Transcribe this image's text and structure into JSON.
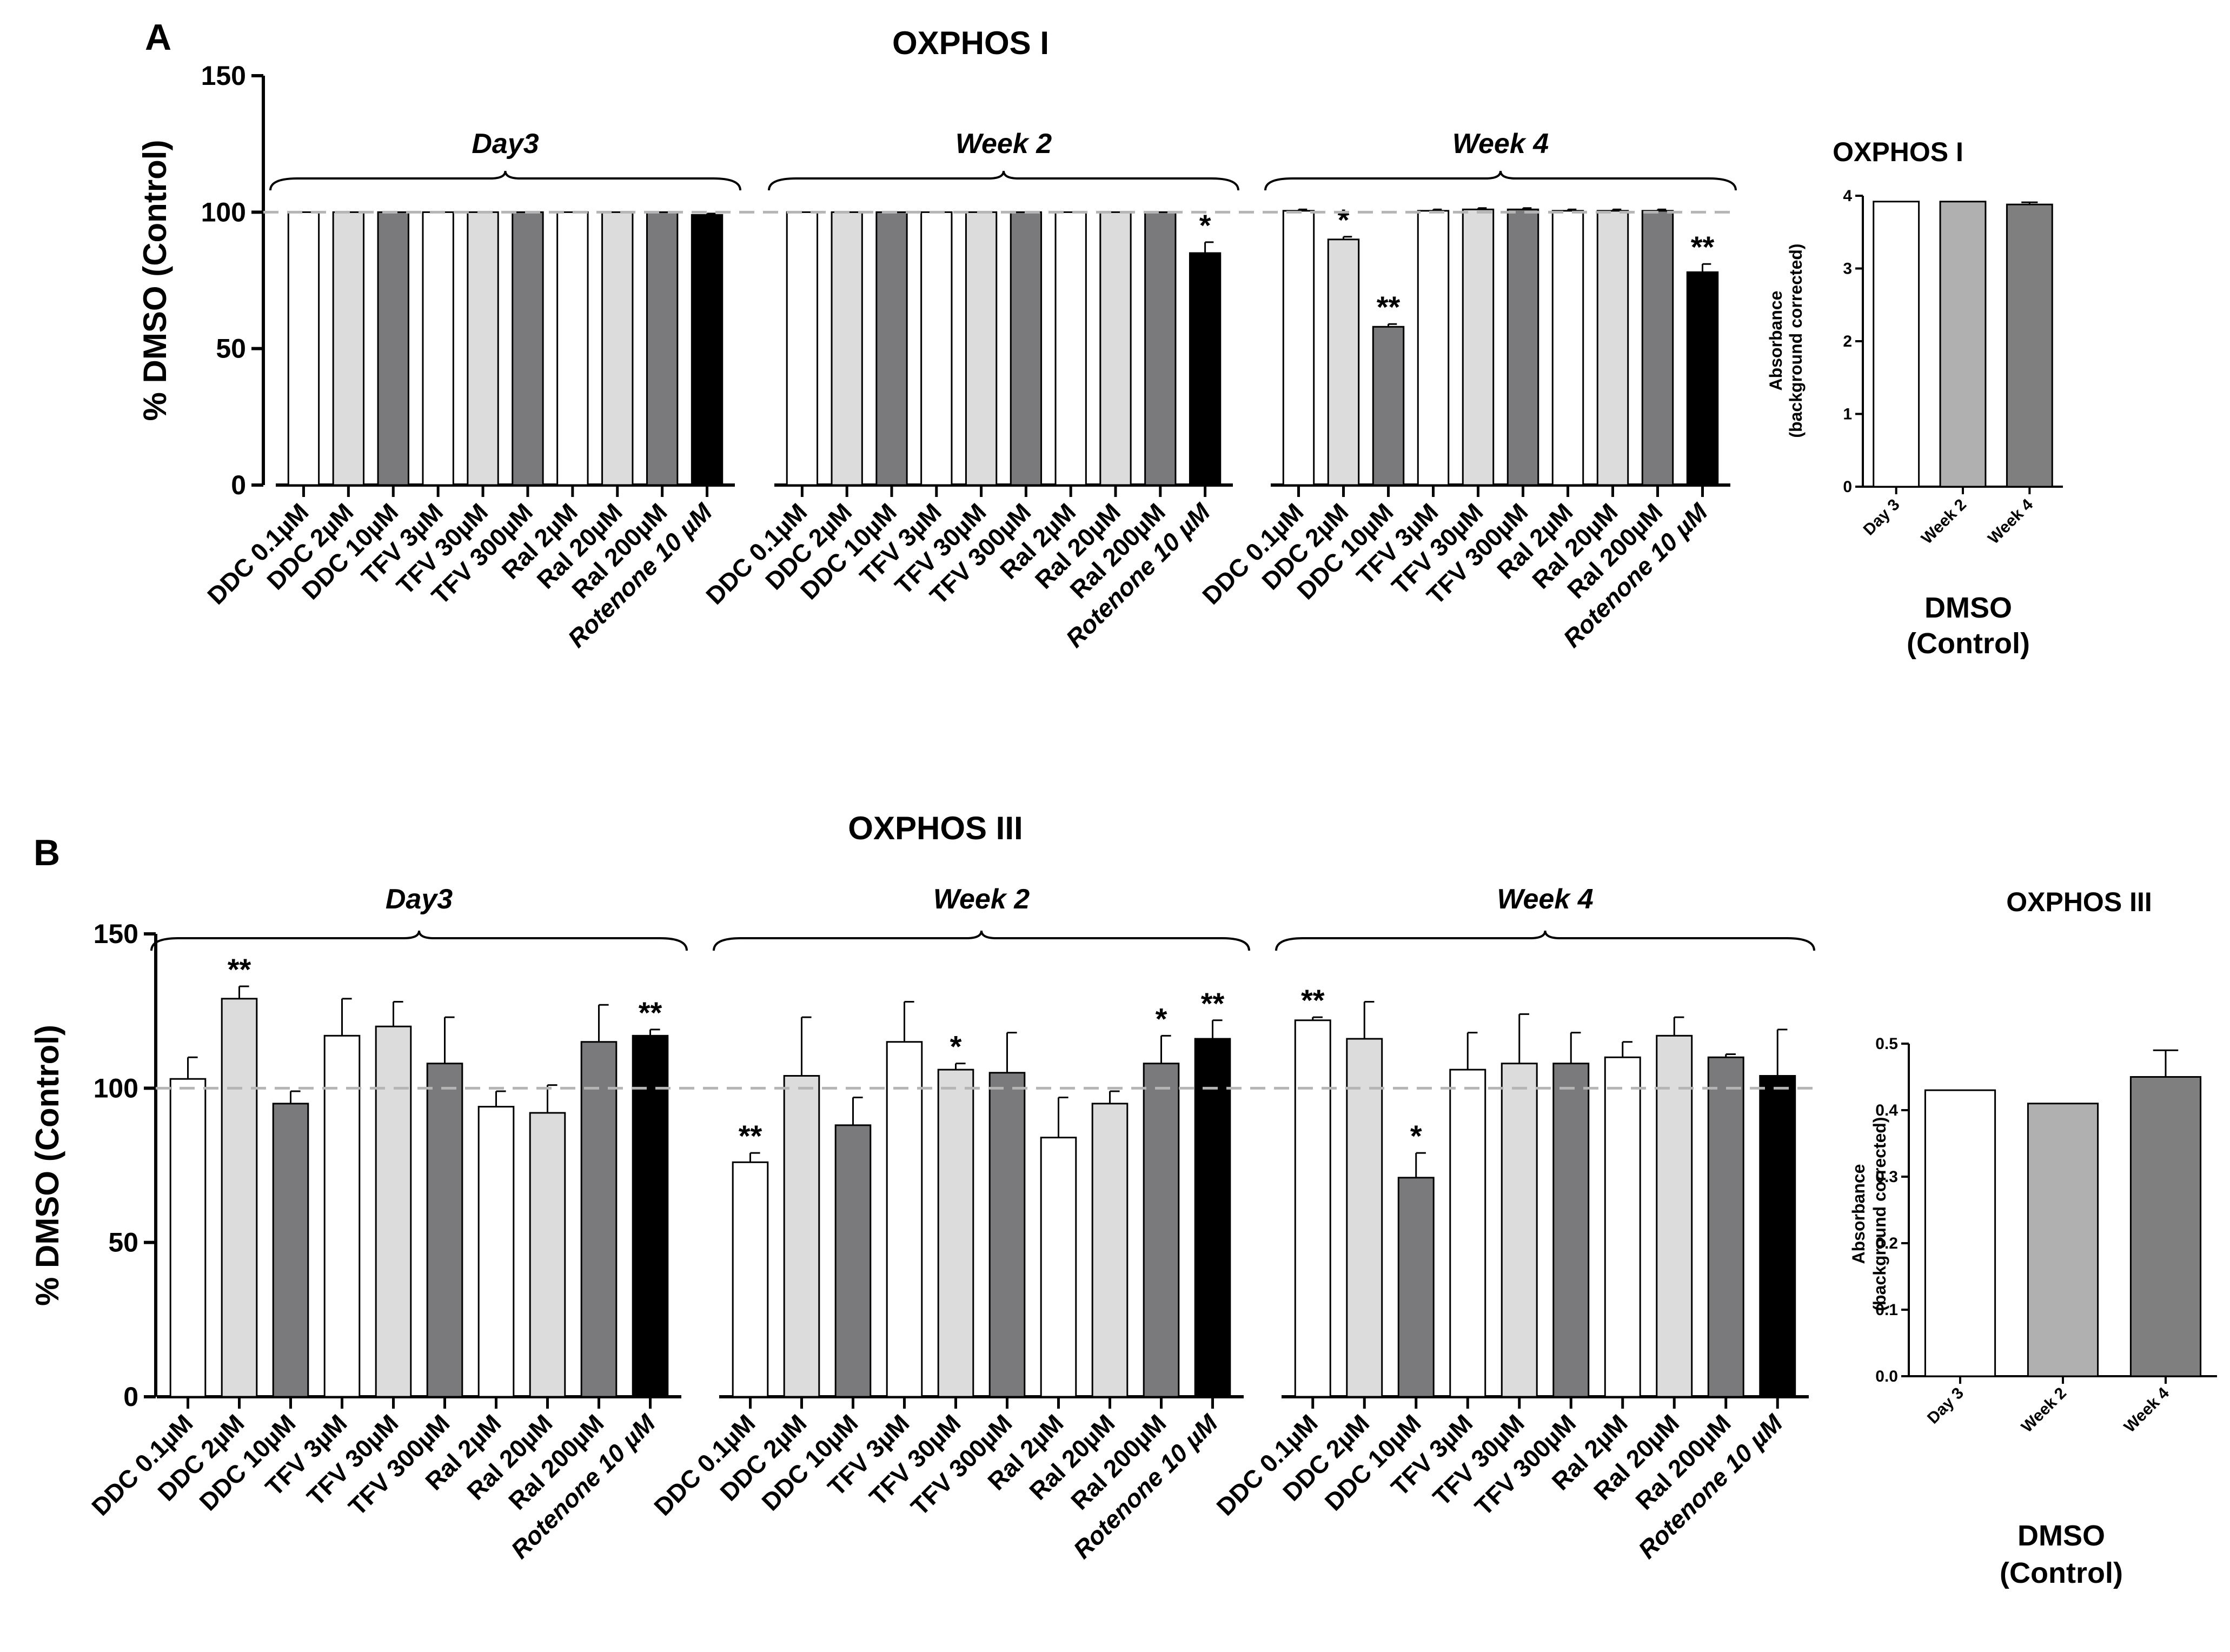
{
  "panels": [
    {
      "id": "A",
      "label": "A",
      "colors": {
        "white": "#ffffff",
        "light": "#dcdcdc",
        "dark": "#7a7a7c",
        "black": "#000000",
        "dashed": "#b5b5b5"
      },
      "chart_data": {
        "type": "bar",
        "title": "OXPHOS I",
        "ylabel": "% DMSO (Control)",
        "ylim": [
          0,
          150
        ],
        "yticks": [
          0,
          50,
          100,
          150
        ],
        "reference_line": 100,
        "groups": [
          {
            "name": "Day3",
            "categories": [
              "DDC 0.1µM",
              "DDC 2µM",
              "DDC 10µM",
              "TFV 3µM",
              "TFV 30µM",
              "TFV 300µM",
              "Ral 2µM",
              "Ral 20µM",
              "Ral  200µM",
              "Rotenone 10 µM"
            ],
            "values": [
              100,
              100,
              100,
              100,
              100,
              100,
              100,
              100,
              100,
              99
            ],
            "errors": [
              0,
              0,
              0,
              0,
              0,
              0,
              0,
              0,
              0,
              0.5
            ],
            "shades": [
              "white",
              "light",
              "dark",
              "white",
              "light",
              "dark",
              "white",
              "light",
              "dark",
              "black"
            ],
            "stars": [
              "",
              "",
              "",
              "",
              "",
              "",
              "",
              "",
              "",
              ""
            ]
          },
          {
            "name": "Week 2",
            "categories": [
              "DDC 0.1µM",
              "DDC 2µM",
              "DDC 10µM",
              "TFV 3µM",
              "TFV 30µM",
              "TFV 300µM",
              "Ral 2µM",
              "Ral 20µM",
              "Ral  200µM",
              "Rotenone 10 µM"
            ],
            "values": [
              100,
              100,
              100,
              100,
              100,
              100,
              100,
              100,
              100,
              85
            ],
            "errors": [
              0,
              0,
              0,
              0,
              0,
              0,
              0,
              0,
              0,
              4
            ],
            "shades": [
              "white",
              "light",
              "dark",
              "white",
              "light",
              "dark",
              "white",
              "light",
              "dark",
              "black"
            ],
            "stars": [
              "",
              "",
              "",
              "",
              "",
              "",
              "",
              "",
              "",
              "*"
            ]
          },
          {
            "name": "Week 4",
            "categories": [
              "DDC 0.1µM",
              "DDC 2µM",
              "DDC 10µM",
              "TFV 3µM",
              "TFV 30µM",
              "TFV 300µM",
              "Ral 2µM",
              "Ral 20µM",
              "Ral  200µM",
              "Rotenone 10 µM"
            ],
            "values": [
              100.5,
              90,
              58,
              100.5,
              101,
              101,
              100.5,
              100.5,
              100.5,
              78
            ],
            "errors": [
              0.5,
              1,
              1,
              0.5,
              0.5,
              0.5,
              0.5,
              0.5,
              0.5,
              3
            ],
            "shades": [
              "white",
              "light",
              "dark",
              "white",
              "light",
              "dark",
              "white",
              "light",
              "dark",
              "black"
            ],
            "stars": [
              "",
              "*",
              "**",
              "",
              "",
              "",
              "",
              "",
              "",
              "**"
            ]
          }
        ]
      },
      "inset": {
        "colors": {
          "d3": "#ffffff",
          "w2": "#b0b0b0",
          "w4": "#7f7f7f"
        },
        "chart_data": {
          "type": "bar",
          "title": "OXPHOS I",
          "ylabel_line1": "Absorbance",
          "ylabel_line2": "(background corrected)",
          "ylim": [
            0,
            4
          ],
          "yticks": [
            "0",
            "1",
            "2",
            "3",
            "4"
          ],
          "categories": [
            "Day 3",
            "Week 2",
            "Week 4"
          ],
          "values": [
            3.92,
            3.92,
            3.88
          ],
          "errors": [
            0,
            0,
            0.03
          ],
          "xlabel_line1": "DMSO",
          "xlabel_line2": "(Control)"
        }
      }
    },
    {
      "id": "B",
      "label": "B",
      "colors": {
        "white": "#ffffff",
        "light": "#dcdcdc",
        "dark": "#7a7a7c",
        "black": "#000000",
        "dashed": "#b5b5b5"
      },
      "chart_data": {
        "type": "bar",
        "title": "OXPHOS III",
        "ylabel": "% DMSO (Control)",
        "ylim": [
          0,
          150
        ],
        "yticks": [
          0,
          50,
          100,
          150
        ],
        "reference_line": 100,
        "groups": [
          {
            "name": "Day3",
            "categories": [
              "DDC 0.1µM",
              "DDC 2µM",
              "DDC 10µM",
              "TFV 3µM",
              "TFV 30µM",
              "TFV 300µM",
              "Ral 2µM",
              "Ral 20µM",
              "Ral  200µM",
              "Rotenone 10 µM"
            ],
            "values": [
              103,
              129,
              95,
              117,
              120,
              108,
              94,
              92,
              115,
              117
            ],
            "errors": [
              7,
              4,
              4,
              12,
              8,
              15,
              5,
              9,
              12,
              2
            ],
            "shades": [
              "white",
              "light",
              "dark",
              "white",
              "light",
              "dark",
              "white",
              "light",
              "dark",
              "black"
            ],
            "stars": [
              "",
              "**",
              "",
              "",
              "",
              "",
              "",
              "",
              "",
              "**"
            ]
          },
          {
            "name": "Week 2",
            "categories": [
              "DDC 0.1µM",
              "DDC 2µM",
              "DDC 10µM",
              "TFV 3µM",
              "TFV 30µM",
              "TFV 300µM",
              "Ral 2µM",
              "Ral 20µM",
              "Ral  200µM",
              "Rotenone 10 µM"
            ],
            "values": [
              76,
              104,
              88,
              115,
              106,
              105,
              84,
              95,
              108,
              116
            ],
            "errors": [
              3,
              19,
              9,
              13,
              2,
              13,
              13,
              4,
              9,
              6
            ],
            "shades": [
              "white",
              "light",
              "dark",
              "white",
              "light",
              "dark",
              "white",
              "light",
              "dark",
              "black"
            ],
            "stars": [
              "**",
              "",
              "",
              "",
              "*",
              "",
              "",
              "",
              "*",
              "**"
            ]
          },
          {
            "name": "Week 4",
            "categories": [
              "DDC 0.1µM",
              "DDC 2µM",
              "DDC 10µM",
              "TFV 3µM",
              "TFV 30µM",
              "TFV 300µM",
              "Ral 2µM",
              "Ral 20µM",
              "Ral  200µM",
              "Rotenone 10 µM"
            ],
            "values": [
              122,
              116,
              71,
              106,
              108,
              108,
              110,
              117,
              110,
              104
            ],
            "errors": [
              1,
              12,
              8,
              12,
              16,
              10,
              5,
              6,
              1,
              15
            ],
            "shades": [
              "white",
              "light",
              "dark",
              "white",
              "light",
              "dark",
              "white",
              "light",
              "dark",
              "black"
            ],
            "stars": [
              "**",
              "",
              "*",
              "",
              "",
              "",
              "",
              "",
              "",
              ""
            ]
          }
        ]
      },
      "inset": {
        "colors": {
          "d3": "#ffffff",
          "w2": "#b0b0b0",
          "w4": "#7f7f7f"
        },
        "chart_data": {
          "type": "bar",
          "title": "OXPHOS III",
          "ylabel_line1": "Absorbance",
          "ylabel_line2": "(background corrected)",
          "ylim": [
            0,
            0.5
          ],
          "yticks": [
            "0.0",
            "0.1",
            "0.2",
            "0.3",
            "0.4",
            "0.5"
          ],
          "categories": [
            "Day 3",
            "Week 2",
            "Week 4"
          ],
          "values": [
            0.43,
            0.41,
            0.45
          ],
          "errors": [
            0,
            0,
            0.04
          ],
          "xlabel_line1": "DMSO",
          "xlabel_line2": "(Control)"
        }
      }
    }
  ]
}
